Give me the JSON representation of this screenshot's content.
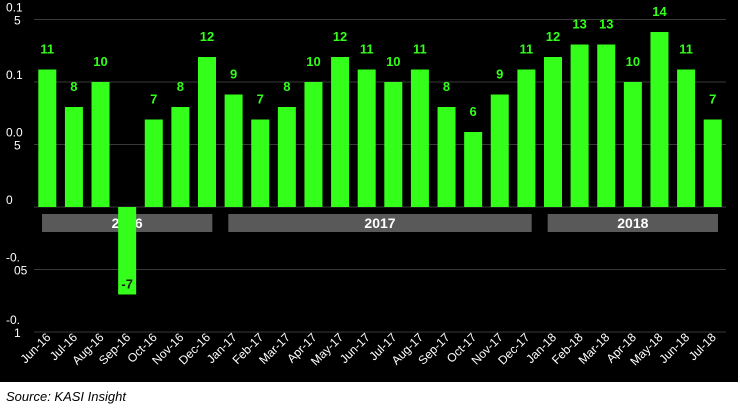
{
  "chart_data": {
    "type": "bar",
    "categories": [
      "Jun-16",
      "Jul-16",
      "Aug-16",
      "Sep-16",
      "Oct-16",
      "Nov-16",
      "Dec-16",
      "Jan-17",
      "Feb-17",
      "Mar-17",
      "Apr-17",
      "May-17",
      "Jun-17",
      "Jul-17",
      "Aug-17",
      "Sep-17",
      "Oct-17",
      "Nov-17",
      "Dec-17",
      "Jan-18",
      "Feb-18",
      "Mar-18",
      "Apr-18",
      "May-18",
      "Jun-18",
      "Jul-18"
    ],
    "values": [
      0.11,
      0.08,
      0.1,
      -0.07,
      0.07,
      0.08,
      0.12,
      0.09,
      0.07,
      0.08,
      0.1,
      0.12,
      0.11,
      0.1,
      0.11,
      0.08,
      0.06,
      0.09,
      0.11,
      0.12,
      0.13,
      0.13,
      0.1,
      0.14,
      0.11,
      0.07
    ],
    "data_labels": [
      "11",
      "8",
      "10",
      "-7",
      "7",
      "8",
      "12",
      "9",
      "7",
      "8",
      "10",
      "12",
      "11",
      "10",
      "11",
      "8",
      "6",
      "9",
      "11",
      "12",
      "13",
      "13",
      "10",
      "14",
      "11",
      "7"
    ],
    "y_ticks": [
      {
        "value": 0.15,
        "label": "0.1\n5"
      },
      {
        "value": 0.1,
        "label": "0.1"
      },
      {
        "value": 0.05,
        "label": "0.0\n5"
      },
      {
        "value": 0,
        "label": "0"
      },
      {
        "value": -0.05,
        "label": "-0.\n05"
      },
      {
        "value": -0.1,
        "label": "-0.\n1"
      }
    ],
    "ylim": [
      -0.1,
      0.15
    ],
    "year_groups": [
      {
        "label": "2016",
        "first": 0,
        "last": 6
      },
      {
        "label": "2017",
        "first": 7,
        "last": 18
      },
      {
        "label": "2018",
        "first": 19,
        "last": 25
      }
    ],
    "grid": true,
    "colors": {
      "bar": "#33ff1a",
      "data_label": "#33ff1a",
      "background": "#000000",
      "grid": "#3a3a3a",
      "axis_text": "#ffffff",
      "year_band": "#595959"
    }
  },
  "source_note": "Source: KASI Insight"
}
